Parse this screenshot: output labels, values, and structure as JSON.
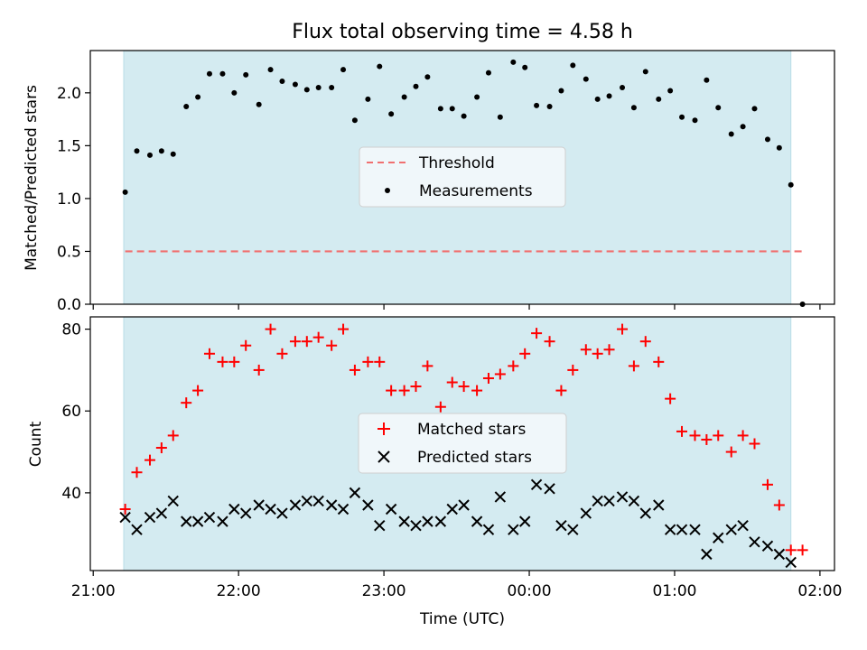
{
  "title": "Flux total observing time = 4.58 h",
  "xlabel": "Time (UTC)",
  "x_ticks": [
    "21:00",
    "22:00",
    "23:00",
    "00:00",
    "01:00",
    "02:00"
  ],
  "colors": {
    "span": "#d4ebf1",
    "threshold": "#f07070",
    "measure": "#000000",
    "matched": "#ff0000",
    "predicted": "#000000"
  },
  "chart_data": [
    {
      "type": "scatter",
      "ylabel": "Matched/Predicted stars",
      "xlim_hours": [
        -0.02,
        5.1
      ],
      "ylim": [
        0,
        2.4
      ],
      "yticks": [
        0.0,
        0.5,
        1.0,
        1.5,
        2.0
      ],
      "y_tick_labels": [
        "0.0",
        "0.5",
        "1.0",
        "1.5",
        "2.0"
      ],
      "observing_span_hours": [
        0.21,
        4.8
      ],
      "legend": {
        "placement": "center",
        "entries": [
          "Threshold",
          "Measurements"
        ]
      },
      "threshold": {
        "name": "Threshold",
        "value": 0.5,
        "x_range_hours": [
          0.22,
          4.88
        ]
      },
      "series": [
        {
          "name": "Measurements",
          "marker": "dot",
          "x_hours": [
            0.22,
            0.3,
            0.39,
            0.47,
            0.55,
            0.64,
            0.72,
            0.8,
            0.89,
            0.97,
            1.05,
            1.14,
            1.22,
            1.3,
            1.39,
            1.47,
            1.55,
            1.64,
            1.72,
            1.8,
            1.89,
            1.97,
            2.05,
            2.14,
            2.22,
            2.3,
            2.39,
            2.47,
            2.55,
            2.64,
            2.72,
            2.8,
            2.89,
            2.97,
            3.05,
            3.14,
            3.22,
            3.3,
            3.39,
            3.47,
            3.55,
            3.64,
            3.72,
            3.8,
            3.89,
            3.97,
            4.05,
            4.14,
            4.22,
            4.3,
            4.39,
            4.47,
            4.55,
            4.64,
            4.72,
            4.8,
            4.88
          ],
          "values": [
            1.06,
            1.45,
            1.41,
            1.45,
            1.42,
            1.87,
            1.96,
            2.18,
            2.18,
            2.0,
            2.17,
            1.89,
            2.22,
            2.11,
            2.08,
            2.03,
            2.05,
            2.05,
            2.22,
            1.74,
            1.94,
            2.25,
            1.8,
            1.96,
            2.06,
            2.15,
            1.85,
            1.85,
            1.78,
            1.96,
            2.19,
            1.77,
            2.29,
            2.24,
            1.88,
            1.87,
            2.02,
            2.26,
            2.13,
            1.94,
            1.97,
            2.05,
            1.86,
            2.2,
            1.94,
            2.02,
            1.77,
            1.74,
            2.12,
            1.86,
            1.61,
            1.68,
            1.85,
            1.56,
            1.48,
            1.13,
            0.0
          ]
        }
      ]
    },
    {
      "type": "scatter",
      "ylabel": "Count",
      "xlabel": "Time (UTC)",
      "xlim_hours": [
        -0.02,
        5.1
      ],
      "ylim": [
        21,
        83
      ],
      "yticks": [
        40,
        60,
        80
      ],
      "y_tick_labels": [
        "40",
        "60",
        "80"
      ],
      "observing_span_hours": [
        0.21,
        4.8
      ],
      "legend": {
        "placement": "center",
        "entries": [
          "Matched stars",
          "Predicted stars"
        ]
      },
      "series": [
        {
          "name": "Matched stars",
          "marker": "plus",
          "x_hours": [
            0.22,
            0.3,
            0.39,
            0.47,
            0.55,
            0.64,
            0.72,
            0.8,
            0.89,
            0.97,
            1.05,
            1.14,
            1.22,
            1.3,
            1.39,
            1.47,
            1.55,
            1.64,
            1.72,
            1.8,
            1.89,
            1.97,
            2.05,
            2.14,
            2.22,
            2.3,
            2.39,
            2.47,
            2.55,
            2.64,
            2.72,
            2.8,
            2.89,
            2.97,
            3.05,
            3.14,
            3.22,
            3.3,
            3.39,
            3.47,
            3.55,
            3.64,
            3.72,
            3.8,
            3.89,
            3.97,
            4.05,
            4.14,
            4.22,
            4.3,
            4.39,
            4.47,
            4.55,
            4.64,
            4.72,
            4.8,
            4.88
          ],
          "values": [
            36,
            45,
            48,
            51,
            54,
            62,
            65,
            74,
            72,
            72,
            76,
            70,
            80,
            74,
            77,
            77,
            78,
            76,
            80,
            70,
            72,
            72,
            65,
            65,
            66,
            71,
            61,
            67,
            66,
            65,
            68,
            69,
            71,
            74,
            79,
            77,
            65,
            70,
            75,
            74,
            75,
            80,
            71,
            77,
            72,
            63,
            55,
            54,
            53,
            54,
            50,
            54,
            52,
            42,
            37,
            26,
            26
          ]
        },
        {
          "name": "Predicted stars",
          "marker": "x",
          "x_hours": [
            0.22,
            0.3,
            0.39,
            0.47,
            0.55,
            0.64,
            0.72,
            0.8,
            0.89,
            0.97,
            1.05,
            1.14,
            1.22,
            1.3,
            1.39,
            1.47,
            1.55,
            1.64,
            1.72,
            1.8,
            1.89,
            1.97,
            2.05,
            2.14,
            2.22,
            2.3,
            2.39,
            2.47,
            2.55,
            2.64,
            2.72,
            2.8,
            2.89,
            2.97,
            3.05,
            3.14,
            3.22,
            3.3,
            3.39,
            3.47,
            3.55,
            3.64,
            3.72,
            3.8,
            3.89,
            3.97,
            4.05,
            4.14,
            4.22,
            4.3,
            4.39,
            4.47,
            4.55,
            4.64,
            4.72,
            4.8
          ],
          "values": [
            34,
            31,
            34,
            35,
            38,
            33,
            33,
            34,
            33,
            36,
            35,
            37,
            36,
            35,
            37,
            38,
            38,
            37,
            36,
            40,
            37,
            32,
            36,
            33,
            32,
            33,
            33,
            36,
            37,
            33,
            31,
            39,
            31,
            33,
            42,
            41,
            32,
            31,
            35,
            38,
            38,
            39,
            38,
            35,
            37,
            31,
            31,
            31,
            25,
            29,
            31,
            32,
            28,
            27,
            25,
            23
          ]
        }
      ]
    }
  ]
}
